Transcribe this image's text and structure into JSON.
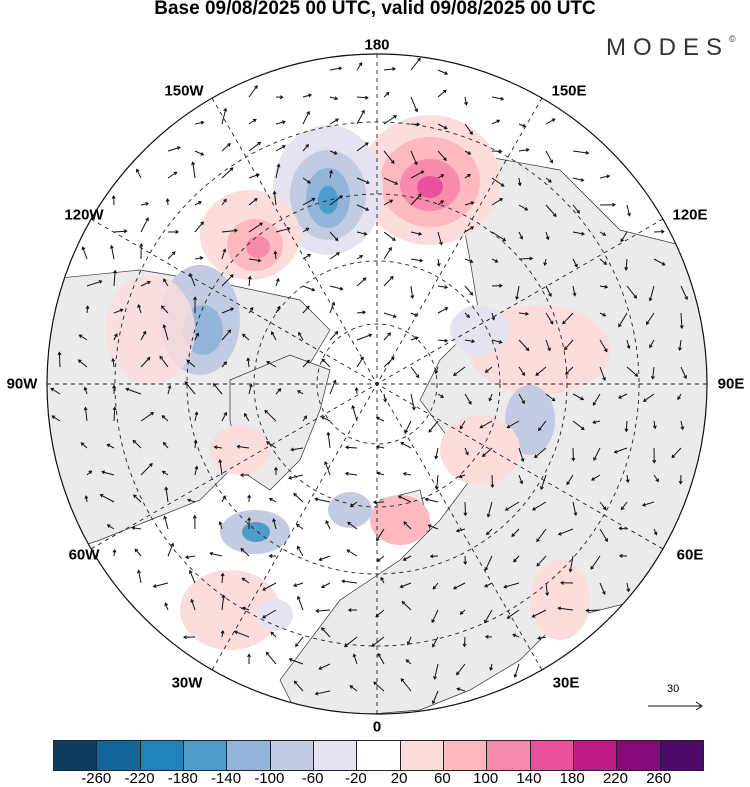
{
  "title": "Base 09/08/2025 00 UTC, valid 09/08/2025 00 UTC",
  "logo": "MODES",
  "logo_mark": "©",
  "map_labels": {
    "top": "180",
    "bottom": "0",
    "left": "90W",
    "right": "90E",
    "tl1": "150W",
    "tr1": "150E",
    "tl2": "120W",
    "tr2": "120E",
    "bl2": "60W",
    "br2": "60E",
    "bl1": "30W",
    "br1": "30E"
  },
  "vector_reference": {
    "label": "30"
  },
  "colorbar": {
    "colors": [
      "#0d3d5c",
      "#11679a",
      "#1f84bb",
      "#4e9cc9",
      "#92b6da",
      "#c2cbe2",
      "#e5e3f0",
      "#ffffff",
      "#fddcdc",
      "#fcbac0",
      "#f88aab",
      "#e8519c",
      "#c01a87",
      "#840a75",
      "#4e0a6a"
    ],
    "labels": [
      "-260",
      "-220",
      "-180",
      "-140",
      "-100",
      "-60",
      "-20",
      "20",
      "60",
      "100",
      "140",
      "180",
      "220",
      "260"
    ]
  }
}
